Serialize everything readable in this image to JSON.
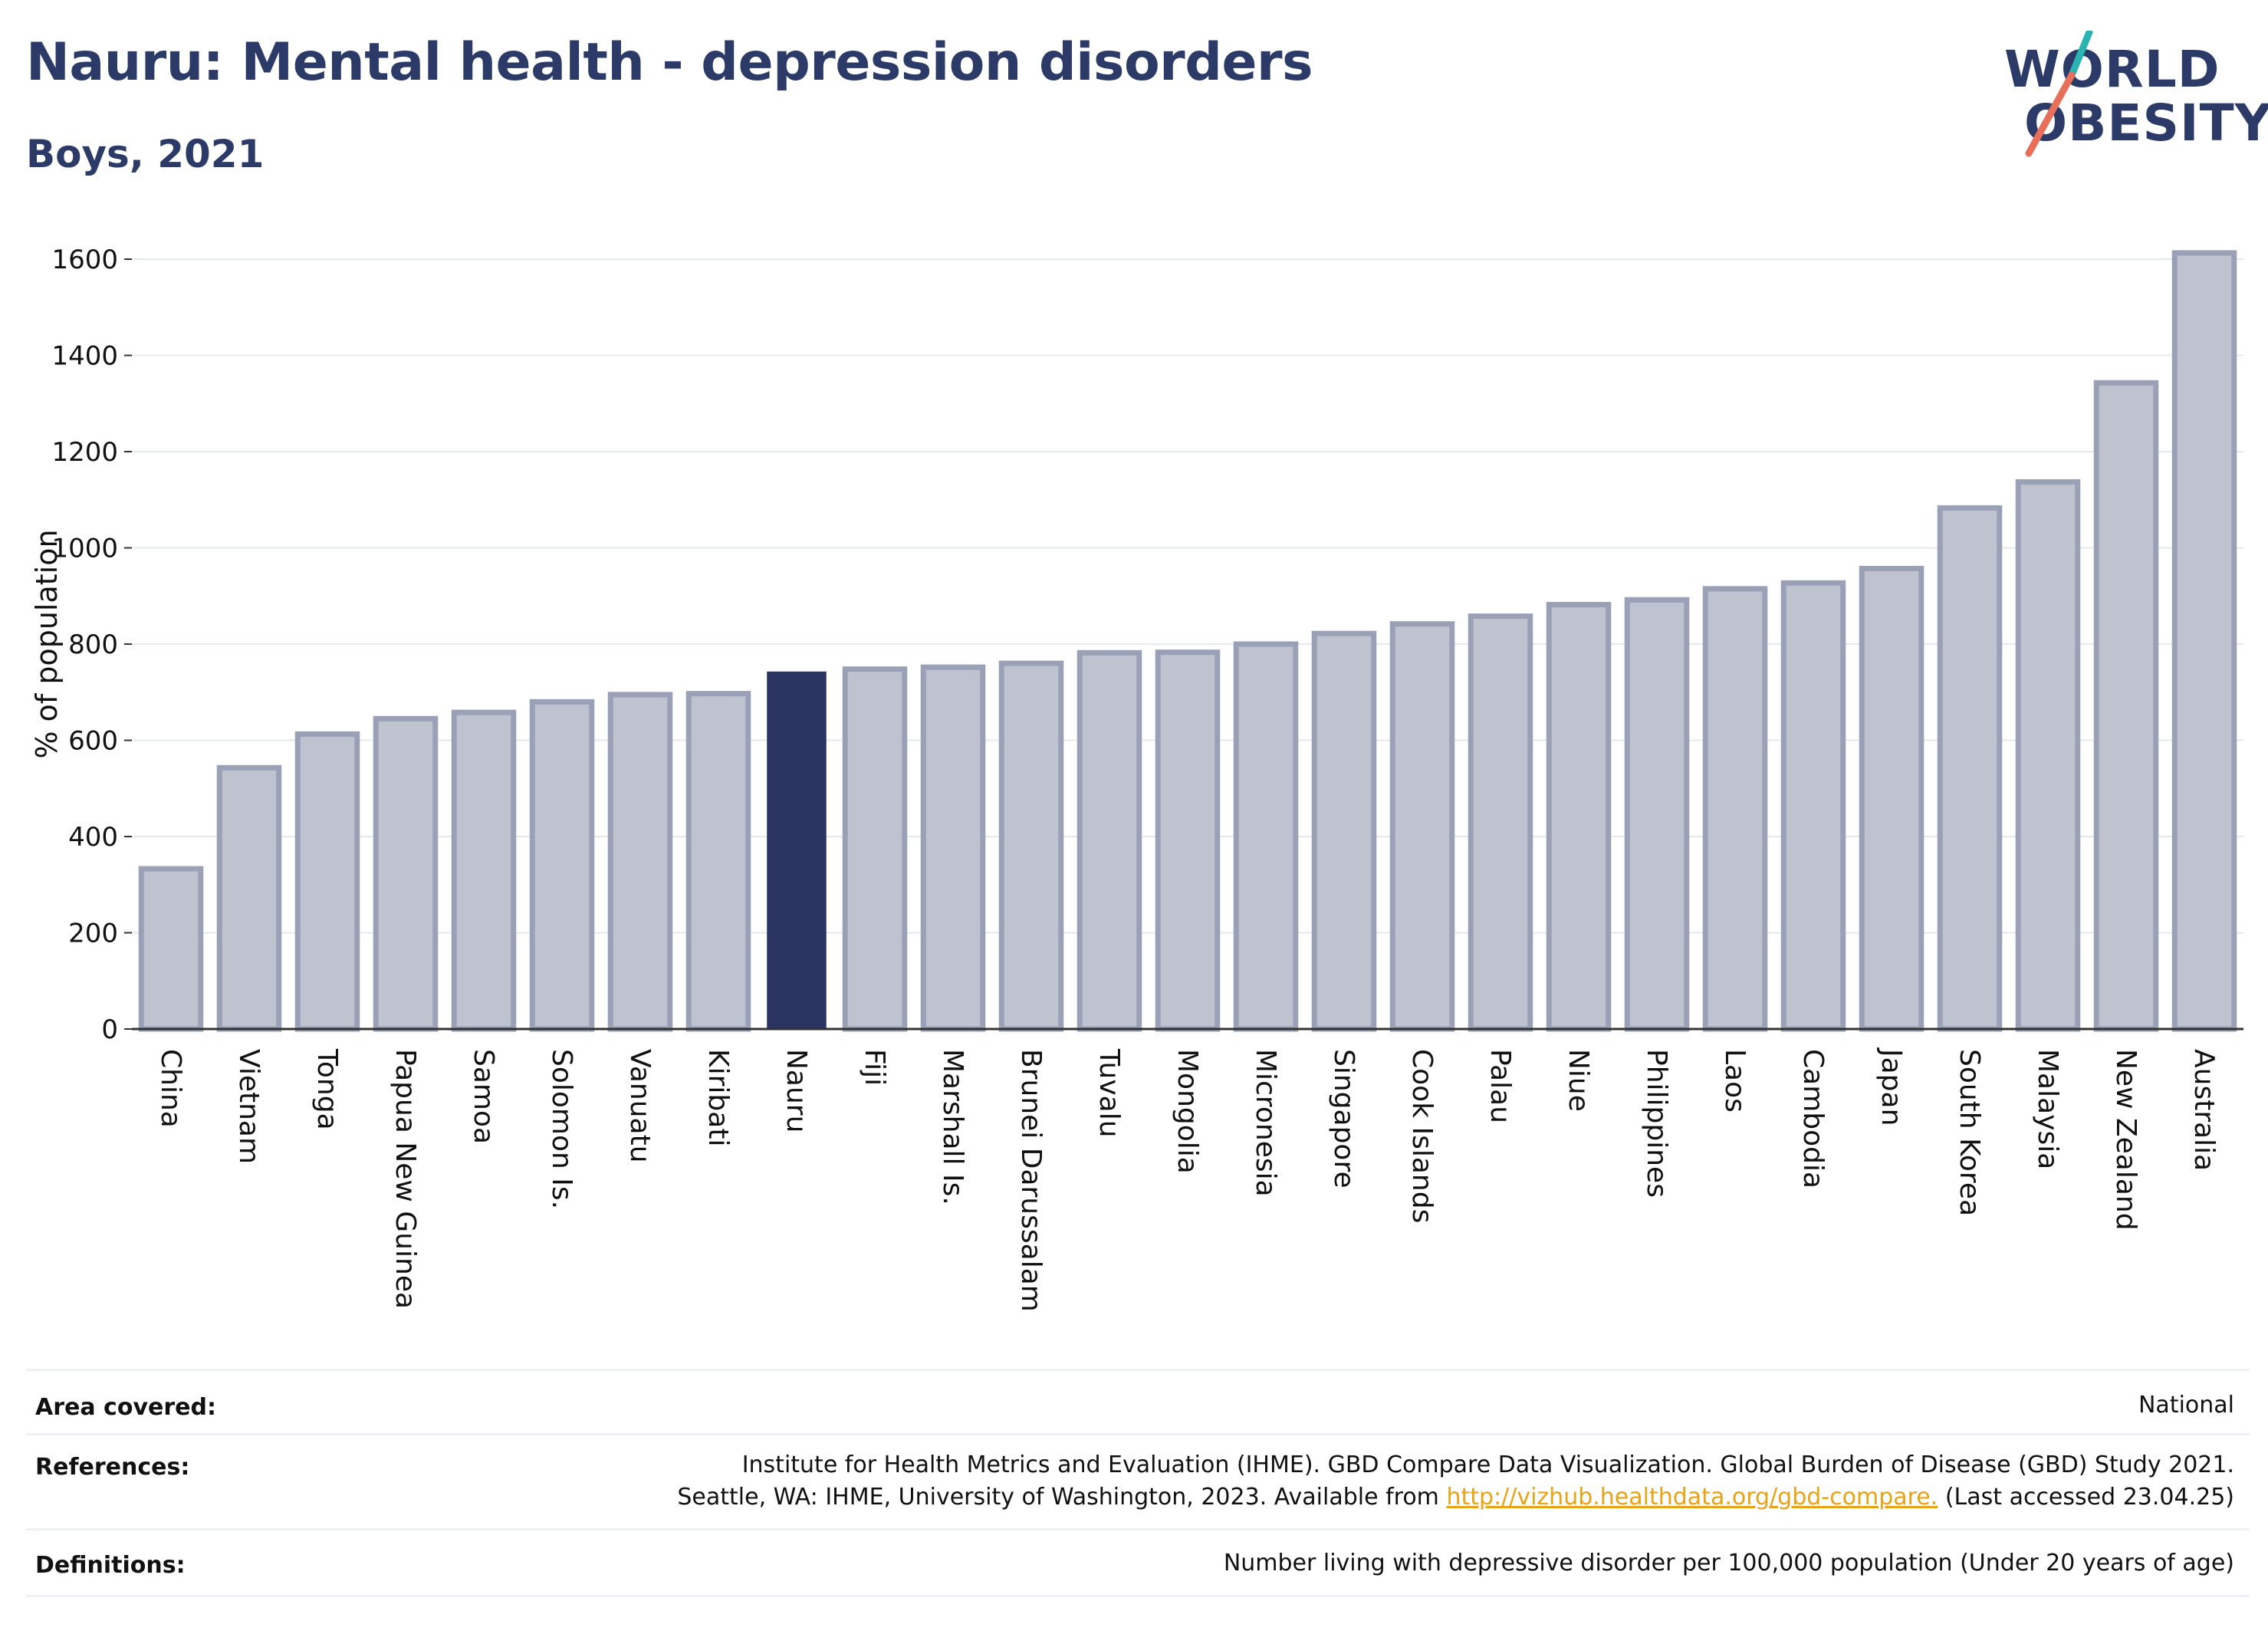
{
  "header": {
    "title": "Nauru: Mental health - depression disorders",
    "subtitle": "Boys, 2021"
  },
  "logo": {
    "line1": "WORLD",
    "line2": "OBESITY",
    "accent_colors": [
      "#2bb3b1",
      "#e8705a"
    ]
  },
  "chart_data": {
    "type": "bar",
    "title": "",
    "xlabel": "",
    "ylabel": "% of population",
    "ylim": [
      0,
      1660
    ],
    "yticks": [
      0,
      200,
      400,
      600,
      800,
      1000,
      1200,
      1400,
      1600
    ],
    "grid": true,
    "highlight_category": "Nauru",
    "highlight_color": "#2b3561",
    "bar_color": "#bfc2cf",
    "bar_border_color": "#9aa0b6",
    "categories": [
      "China",
      "Vietnam",
      "Tonga",
      "Papua New Guinea",
      "Samoa",
      "Solomon Is.",
      "Vanuatu",
      "Kiribati",
      "Nauru",
      "Fiji",
      "Marshall Is.",
      "Brunei Darussalam",
      "Tuvalu",
      "Mongolia",
      "Micronesia",
      "Singapore",
      "Cook Islands",
      "Palau",
      "Niue",
      "Philippines",
      "Laos",
      "Cambodia",
      "Japan",
      "South Korea",
      "Malaysia",
      "New Zealand",
      "Australia"
    ],
    "values": [
      333,
      543,
      613,
      645,
      658,
      680,
      695,
      697,
      743,
      748,
      752,
      760,
      782,
      783,
      800,
      822,
      842,
      858,
      882,
      892,
      915,
      927,
      957,
      1083,
      1137,
      1343,
      1613
    ]
  },
  "footer": {
    "rows": [
      {
        "label": "Area covered:",
        "value_lines": [
          "National"
        ]
      },
      {
        "label": "References:",
        "value_lines": [
          "Institute for Health Metrics and Evaluation (IHME). GBD Compare Data Visualization. Global Burden of Disease (GBD) Study 2021."
        ],
        "ref_line2_before": "Seattle, WA: IHME, University of Washington, 2023. Available from ",
        "ref_link": "http://vizhub.healthdata.org/gbd-compare.",
        "ref_line2_after": " (Last accessed 23.04.25)"
      },
      {
        "label": "Definitions:",
        "value_lines": [
          "Number living with depressive disorder per 100,000 population (Under 20 years of age)"
        ]
      }
    ]
  }
}
